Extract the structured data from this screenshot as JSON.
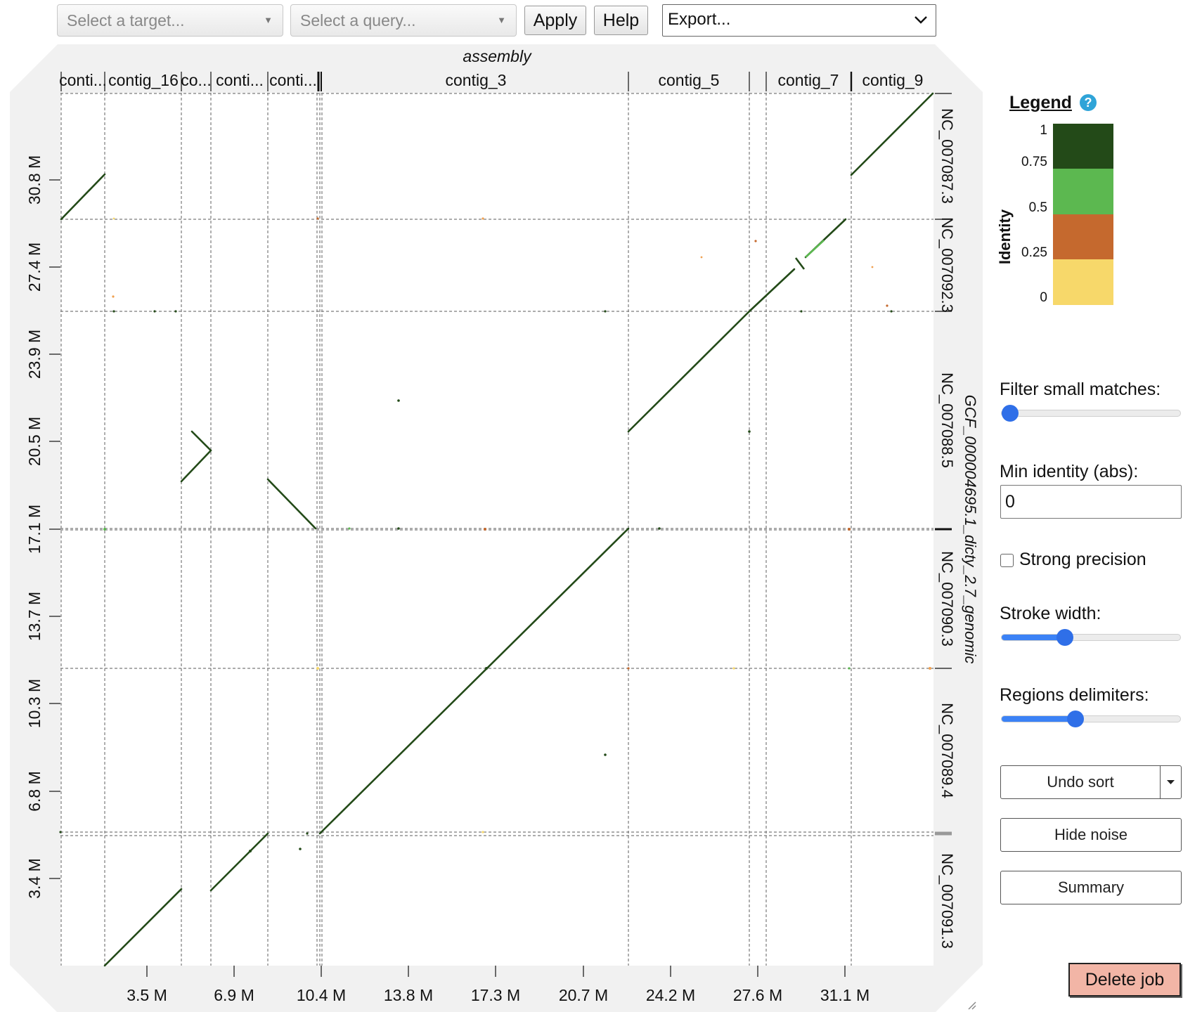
{
  "toolbar": {
    "target_placeholder": "Select a target...",
    "query_placeholder": "Select a query...",
    "apply_label": "Apply",
    "help_label": "Help",
    "export_label": "Export..."
  },
  "plot": {
    "top_axis_title": "assembly",
    "right_axis_title": "GCF_000004695.1_dicty_2.7_genomic",
    "top_contigs": [
      "conti...",
      "contig_16",
      "co...",
      "conti...",
      "conti...",
      "contig_3",
      "contig_5",
      "contig_7",
      "contig_9"
    ],
    "right_contigs": [
      "NC_007087.3",
      "NC_007092.3",
      "NC_007088.5",
      "NC_007090.3",
      "NC_007089.4",
      "NC_007091.3"
    ],
    "x_ticks": [
      "3.5 M",
      "6.9 M",
      "10.4 M",
      "13.8 M",
      "17.3 M",
      "20.7 M",
      "24.2 M",
      "27.6 M",
      "31.1 M"
    ],
    "y_ticks": [
      "3.4 M",
      "6.8 M",
      "10.3 M",
      "13.7 M",
      "17.1 M",
      "20.5 M",
      "23.9 M",
      "27.4 M",
      "30.8 M"
    ]
  },
  "legend": {
    "title": "Legend",
    "help_icon": "?",
    "axis_label": "Identity",
    "ticks": [
      "1",
      "0.75",
      "0.5",
      "0.25",
      "0"
    ],
    "colors": [
      "#234a18",
      "#5cb850",
      "#c5692e",
      "#f7d86a"
    ]
  },
  "controls": {
    "filter_label": "Filter small matches:",
    "filter_value": 0,
    "min_identity_label": "Min identity (abs):",
    "min_identity_value": "0",
    "strong_precision_label": "Strong precision",
    "stroke_width_label": "Stroke width:",
    "stroke_width_value": 0.35,
    "regions_label": "Regions delimiters:",
    "regions_value": 0.41,
    "undo_sort_label": "Undo sort",
    "hide_noise_label": "Hide noise",
    "summary_label": "Summary",
    "delete_label": "Delete job"
  }
}
